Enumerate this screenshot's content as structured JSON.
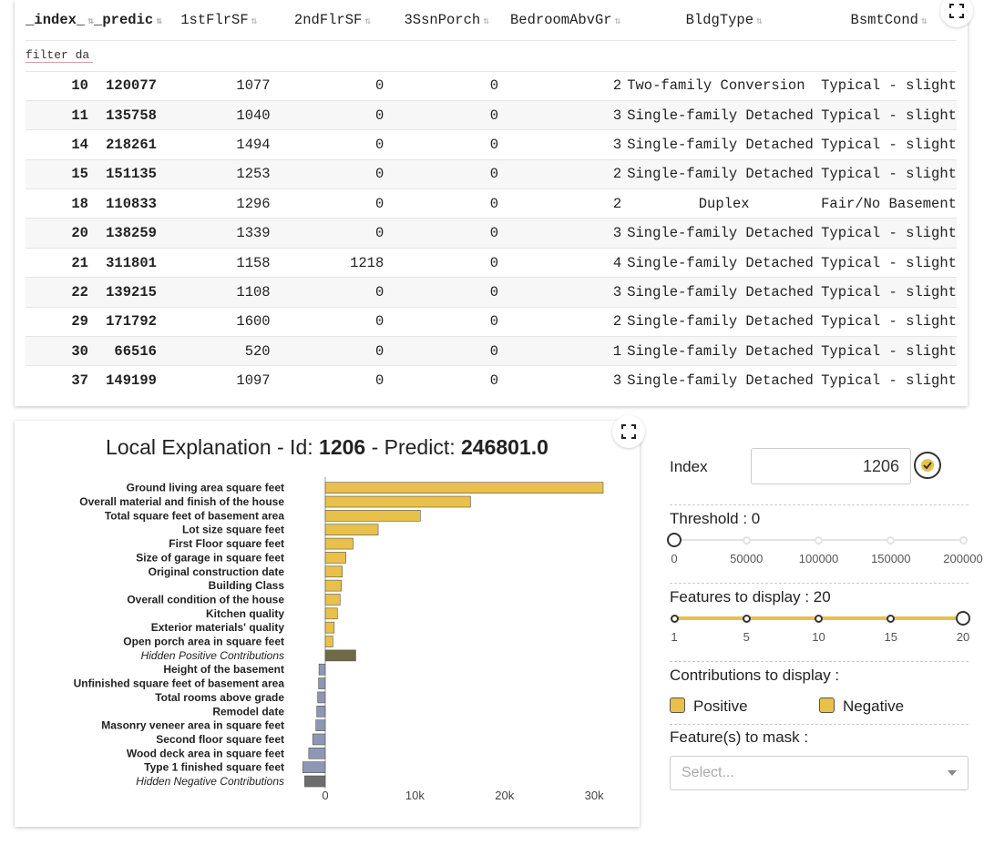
{
  "table": {
    "columns": [
      {
        "label": "_index_",
        "bold": true
      },
      {
        "label": "_predic",
        "bold": true
      },
      {
        "label": "1stFlrSF",
        "bold": false
      },
      {
        "label": "2ndFlrSF",
        "bold": false
      },
      {
        "label": "3SsnPorch",
        "bold": false
      },
      {
        "label": "BedroomAbvGr",
        "bold": false
      },
      {
        "label": "BldgType",
        "bold": false
      },
      {
        "label": "BsmtCond",
        "bold": false
      }
    ],
    "filter_placeholder": "filter da",
    "rows": [
      [
        "10",
        "120077",
        "1077",
        "0",
        "0",
        "2",
        "Two-family Conversion",
        "Typical - slight"
      ],
      [
        "11",
        "135758",
        "1040",
        "0",
        "0",
        "3",
        "Single-family Detached",
        "Typical - slight"
      ],
      [
        "14",
        "218261",
        "1494",
        "0",
        "0",
        "3",
        "Single-family Detached",
        "Typical - slight"
      ],
      [
        "15",
        "151135",
        "1253",
        "0",
        "0",
        "2",
        "Single-family Detached",
        "Typical - slight"
      ],
      [
        "18",
        "110833",
        "1296",
        "0",
        "0",
        "2",
        "Duplex",
        "Fair/No Basement"
      ],
      [
        "20",
        "138259",
        "1339",
        "0",
        "0",
        "3",
        "Single-family Detached",
        "Typical - slight"
      ],
      [
        "21",
        "311801",
        "1158",
        "1218",
        "0",
        "4",
        "Single-family Detached",
        "Typical - slight"
      ],
      [
        "22",
        "139215",
        "1108",
        "0",
        "0",
        "3",
        "Single-family Detached",
        "Typical - slight"
      ],
      [
        "29",
        "171792",
        "1600",
        "0",
        "0",
        "2",
        "Single-family Detached",
        "Typical - slight"
      ],
      [
        "30",
        "66516",
        "520",
        "0",
        "0",
        "1",
        "Single-family Detached",
        "Typical - slight"
      ],
      [
        "37",
        "149199",
        "1097",
        "0",
        "0",
        "3",
        "Single-family Detached",
        "Typical - slight"
      ]
    ]
  },
  "chart": {
    "title_prefix": "Local Explanation - Id: ",
    "id": "1206",
    "title_mid": " - Predict: ",
    "predict": "246801.0"
  },
  "chart_data": {
    "type": "bar",
    "orientation": "horizontal",
    "title": "Local Explanation - Id: 1206 - Predict: 246801.0",
    "xlim": [
      -2600,
      31500
    ],
    "xticks": [
      0,
      10000,
      20000,
      30000
    ],
    "xtick_labels": [
      "0",
      "10k",
      "20k",
      "30k"
    ],
    "categories": [
      "Ground living area square feet",
      "Overall material and finish of the house",
      "Total square feet of basement area",
      "Lot size square feet",
      "First Floor square feet",
      "Size of garage in square feet",
      "Original construction date",
      "Building Class",
      "Overall condition of the house",
      "Kitchen quality",
      "Exterior materials' quality",
      "Open porch area in square feet",
      "Hidden Positive Contributions",
      "Height of the basement",
      "Unfinished square feet of basement area",
      "Total rooms above grade",
      "Remodel date",
      "Masonry veneer area in square feet",
      "Second floor square feet",
      "Wood deck area in square feet",
      "Type 1 finished square feet",
      "Hidden Negative Contributions"
    ],
    "values": [
      31000,
      16200,
      10600,
      5900,
      3100,
      2300,
      1900,
      1800,
      1650,
      1350,
      1000,
      850,
      3400,
      -700,
      -750,
      -850,
      -950,
      -1050,
      -1400,
      -1850,
      -2500,
      -2300
    ],
    "italic": [
      false,
      false,
      false,
      false,
      false,
      false,
      false,
      false,
      false,
      false,
      false,
      false,
      true,
      false,
      false,
      false,
      false,
      false,
      false,
      false,
      false,
      true
    ],
    "colors": {
      "positive": "#e8c04a",
      "negative": "#8d97b3",
      "hidden_positive": "#6e6a45",
      "hidden_negative": "#6d6d6d"
    }
  },
  "controls": {
    "index_label": "Index",
    "index_value": "1206",
    "threshold_label": "Threshold : 0",
    "threshold_ticks": [
      "0",
      "50000",
      "100000",
      "150000",
      "200000"
    ],
    "threshold_value": 0,
    "features_label": "Features to display : 20",
    "features_ticks": [
      "1",
      "5",
      "10",
      "15",
      "20"
    ],
    "features_value": 20,
    "contributions_label": "Contributions to display :",
    "positive_label": "Positive",
    "negative_label": "Negative",
    "mask_label": "Feature(s) to mask :",
    "mask_placeholder": "Select..."
  },
  "colors": {
    "accent": "#e8c04a",
    "text": "#222222",
    "border": "#cccccc"
  }
}
